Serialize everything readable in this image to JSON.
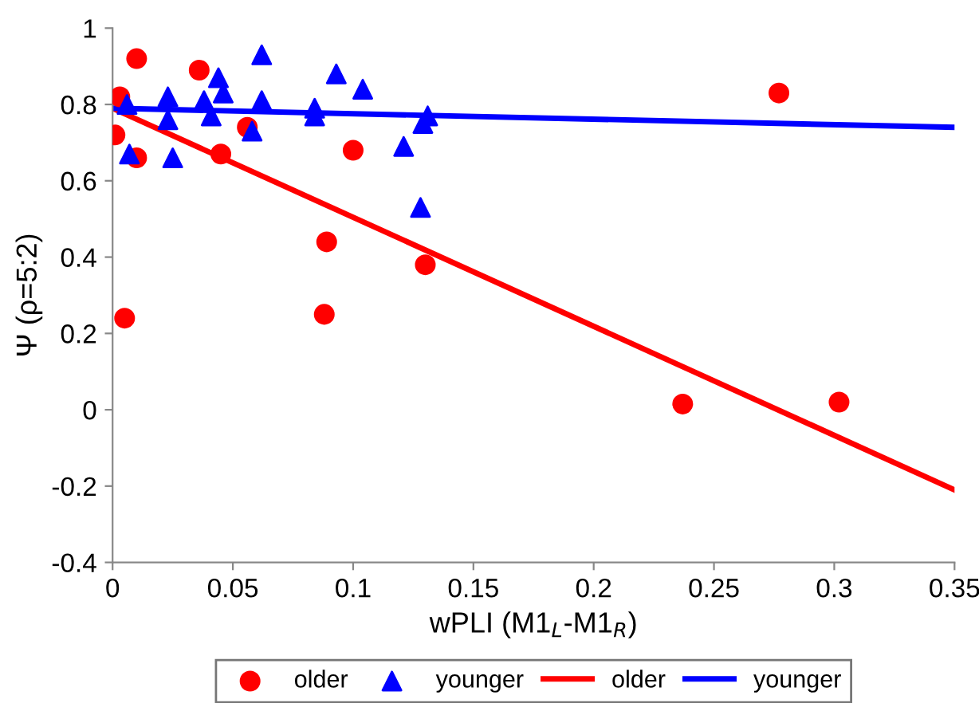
{
  "chart_data": {
    "type": "scatter",
    "xlabel": "wPLI (M1$_{L}$-M1$_{R}$)",
    "ylabel": "Ψ (ρ=5:2)",
    "xlim": [
      0,
      0.35
    ],
    "xticks": [
      0,
      0.05,
      0.1,
      0.15,
      0.2,
      0.25,
      0.3,
      0.35
    ],
    "ylim": [
      -0.4,
      1
    ],
    "yticks": [
      -0.4,
      -0.2,
      0,
      0.2,
      0.4,
      0.6,
      0.8,
      1
    ],
    "grid": false,
    "legend": "bottom",
    "series": [
      {
        "name": "older",
        "marker": "circle",
        "color": "#ff0000",
        "x": [
          0.003,
          0.01,
          0.001,
          0.01,
          0.005,
          0.036,
          0.045,
          0.056,
          0.1,
          0.089,
          0.088,
          0.13,
          0.277,
          0.237,
          0.302
        ],
        "values": [
          0.82,
          0.92,
          0.72,
          0.66,
          0.24,
          0.89,
          0.67,
          0.74,
          0.68,
          0.44,
          0.25,
          0.38,
          0.83,
          0.015,
          0.02
        ]
      },
      {
        "name": "younger",
        "marker": "triangle",
        "color": "#0000ff",
        "x": [
          0.006,
          0.007,
          0.023,
          0.023,
          0.025,
          0.038,
          0.041,
          0.044,
          0.046,
          0.058,
          0.062,
          0.062,
          0.084,
          0.084,
          0.093,
          0.104,
          0.121,
          0.128,
          0.129,
          0.131
        ],
        "values": [
          0.8,
          0.67,
          0.82,
          0.76,
          0.66,
          0.81,
          0.77,
          0.87,
          0.83,
          0.73,
          0.93,
          0.81,
          0.79,
          0.77,
          0.88,
          0.84,
          0.69,
          0.53,
          0.75,
          0.77
        ]
      },
      {
        "name": "older",
        "type": "line",
        "marker": "none",
        "line_style": "solid",
        "color": "#ff0000",
        "x": [
          0,
          0.35
        ],
        "values": [
          0.79,
          -0.21
        ]
      },
      {
        "name": "younger",
        "type": "line",
        "marker": "none",
        "line_style": "solid",
        "color": "#0000ff",
        "x": [
          0,
          0.35
        ],
        "values": [
          0.79,
          0.74
        ]
      }
    ]
  }
}
